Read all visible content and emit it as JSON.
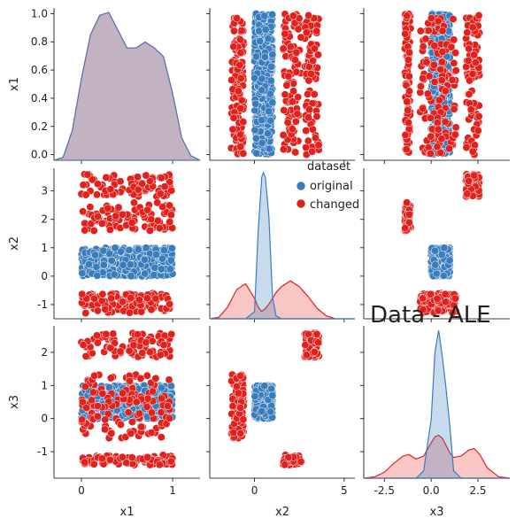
{
  "title": "Data - ALE",
  "colors": {
    "original": "#3a7dbd",
    "changed": "#e3211c",
    "overlap_fill": "#c3b2c2",
    "overlap_line": "#5b73ae"
  },
  "legend": {
    "title": "dataset",
    "entries": [
      {
        "name": "original",
        "color": "#3a7dbd"
      },
      {
        "name": "changed",
        "color": "#e3211c"
      }
    ]
  },
  "chart_data": {
    "type": "scatter",
    "kind": "pairplot",
    "variables": [
      "x1",
      "x2",
      "x3"
    ],
    "hue": "dataset",
    "axis_ticks": {
      "x1": {
        "labels": [
          "0",
          "1"
        ],
        "values": [
          0,
          1
        ]
      },
      "x2": {
        "labels": [
          "0",
          "5"
        ],
        "values": [
          0,
          5
        ]
      },
      "x3": {
        "labels": [
          "-2.5",
          "0.0",
          "2.5"
        ],
        "values": [
          -2.5,
          0.0,
          2.5
        ]
      }
    },
    "row_ticks": {
      "x1": {
        "labels": [
          "0.0",
          "0.2",
          "0.4",
          "0.6",
          "0.8",
          "1.0"
        ],
        "values": [
          0.0,
          0.2,
          0.4,
          0.6,
          0.8,
          1.0
        ]
      },
      "x2": {
        "labels": [
          "-1",
          "0",
          "1",
          "2",
          "3"
        ],
        "values": [
          -1,
          0,
          1,
          2,
          3
        ]
      },
      "x3": {
        "labels": [
          "-1",
          "0",
          "1",
          "2"
        ],
        "values": [
          -1,
          0,
          1,
          2
        ]
      }
    },
    "limits": {
      "x1": [
        -0.3,
        1.3
      ],
      "x2": [
        -2.5,
        5.6
      ],
      "x3": [
        -3.6,
        4.2
      ],
      "x1_row": [
        -0.04,
        1.04
      ],
      "x2_row": [
        -1.5,
        3.8
      ],
      "x3_row": [
        -1.8,
        2.8
      ]
    },
    "original_clusters": {
      "x1": [
        0,
        1
      ],
      "x2": [
        0,
        1
      ],
      "x3": [
        0,
        1
      ]
    },
    "changed_clusters": {
      "x1": [
        0,
        1
      ],
      "x2_bands": [
        [
          -1.3,
          -0.6
        ],
        [
          1.6,
          2.6
        ],
        [
          2.8,
          3.6
        ]
      ],
      "x3_bands": [
        [
          -1.4,
          -1.1
        ],
        [
          -0.6,
          2.6
        ],
        [
          2.0,
          2.6
        ]
      ]
    },
    "kde": {
      "x1": {
        "overlap": true,
        "grid": [
          -0.3,
          -0.2,
          -0.1,
          0.0,
          0.1,
          0.2,
          0.3,
          0.4,
          0.5,
          0.6,
          0.7,
          0.8,
          0.9,
          1.0,
          1.1,
          1.2,
          1.3
        ],
        "density": [
          0.0,
          0.02,
          0.2,
          0.55,
          0.85,
          0.98,
          1.0,
          0.88,
          0.76,
          0.76,
          0.8,
          0.76,
          0.7,
          0.45,
          0.15,
          0.03,
          0.0
        ]
      },
      "x2": {
        "grid": [
          -2.5,
          -2.0,
          -1.5,
          -1.0,
          -0.5,
          0.0,
          0.2,
          0.4,
          0.5,
          0.6,
          0.8,
          1.0,
          1.2,
          1.5,
          2.0,
          2.5,
          3.0,
          3.5,
          4.0,
          4.5,
          5.0,
          5.6
        ],
        "original": [
          0,
          0,
          0,
          0,
          0,
          0.05,
          0.6,
          0.97,
          1.0,
          0.97,
          0.7,
          0.15,
          0.02,
          0,
          0,
          0,
          0,
          0,
          0,
          0,
          0,
          0
        ],
        "changed": [
          0.0,
          0.01,
          0.08,
          0.2,
          0.24,
          0.14,
          0.08,
          0.05,
          0.06,
          0.07,
          0.1,
          0.14,
          0.18,
          0.22,
          0.26,
          0.22,
          0.15,
          0.07,
          0.02,
          0.0,
          0.0,
          0.0
        ]
      },
      "x3": {
        "grid": [
          -3.6,
          -3.0,
          -2.5,
          -2.0,
          -1.5,
          -1.2,
          -0.8,
          -0.4,
          0.0,
          0.2,
          0.4,
          0.6,
          0.8,
          1.0,
          1.2,
          1.6,
          2.0,
          2.3,
          2.6,
          3.0,
          3.6,
          4.2
        ],
        "original": [
          0,
          0,
          0,
          0,
          0,
          0,
          0,
          0.05,
          0.4,
          0.85,
          1.0,
          0.82,
          0.6,
          0.35,
          0.05,
          0,
          0,
          0,
          0,
          0,
          0,
          0
        ],
        "changed": [
          0.0,
          0.01,
          0.04,
          0.1,
          0.15,
          0.16,
          0.13,
          0.15,
          0.24,
          0.28,
          0.29,
          0.27,
          0.22,
          0.17,
          0.14,
          0.15,
          0.19,
          0.2,
          0.16,
          0.07,
          0.01,
          0.0
        ]
      }
    }
  }
}
